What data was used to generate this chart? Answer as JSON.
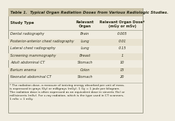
{
  "title": "Table 1.  Typical Organ Radiation Doses from Various Radiologic Studies.",
  "col1_header": "Study Type",
  "col2_header": "Relevant\nOrgan",
  "col3_header": "Relevant Organ Dose*\n(mGy or mSv)",
  "rows": [
    [
      "Dental radiography",
      "Brain",
      "0.005"
    ],
    [
      "Posterior-anterior chest radiography",
      "Lung",
      "0.01"
    ],
    [
      "Lateral chest radiography",
      "Lung",
      "0.15"
    ],
    [
      "Screening mammography",
      "Breast",
      "1"
    ],
    [
      "Adult abdominal CT",
      "Stomach",
      "10"
    ],
    [
      "Barium enema",
      "Colon",
      "15"
    ],
    [
      "Neonatal abdominal CT",
      "Stomach",
      "20"
    ]
  ],
  "footnote": "* The radiation dose, a measure of ionizing energy absorbed per unit of mass,\nis expressed in grays (Gy) or milligrays (mGy). 1 Gy = 1 joule per kilogram.\nThe radiation dose is often expressed as an equivalent dose in sieverts (Sv) or\nmillisieverts (mSv). For x-ray radiation, which is the type used in CT scanners,\n1 mSv = 1 mGy.",
  "bg_color": "#f0ece0",
  "title_bg": "#ccc4aa",
  "border_color": "#999988",
  "text_color": "#2a2a18",
  "header_text_color": "#2a2a18",
  "title_text_color": "#2a2a18"
}
